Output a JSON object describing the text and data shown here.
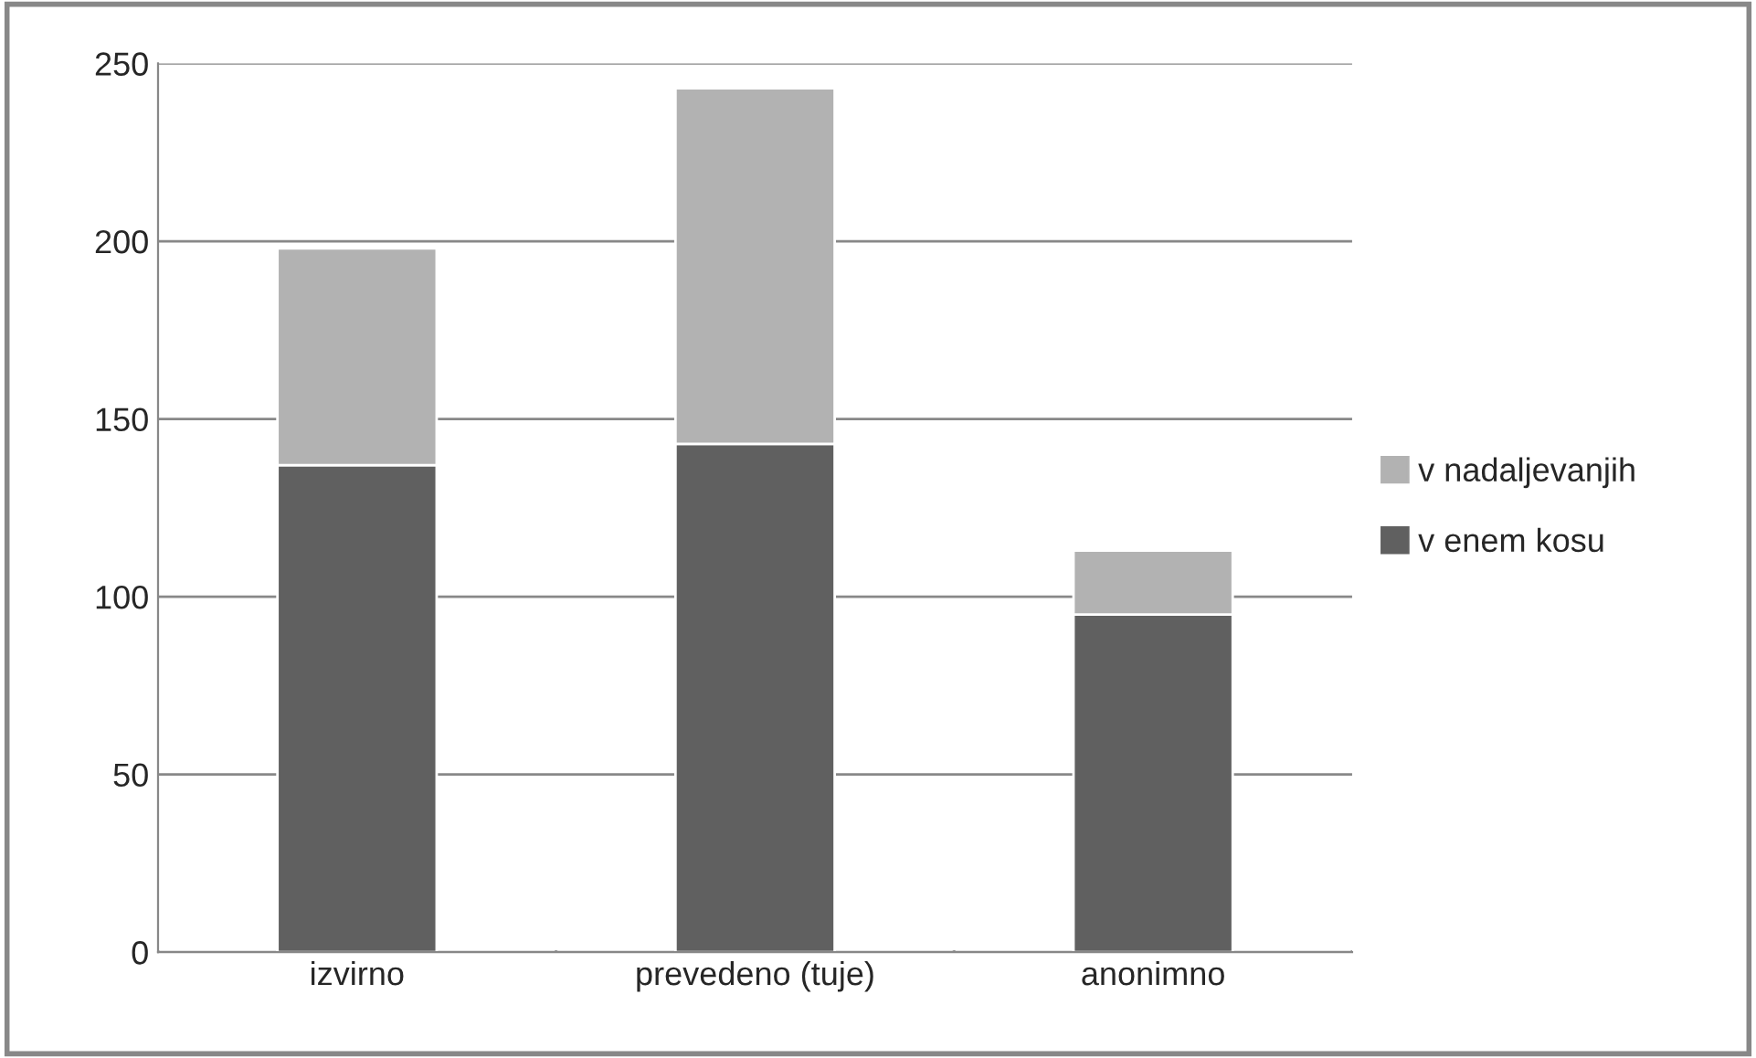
{
  "chart_data": {
    "type": "bar",
    "stacked": true,
    "categories": [
      "izvirno",
      "prevedeno (tuje)",
      "anonimno"
    ],
    "series": [
      {
        "name": "v enem kosu",
        "color": "#606060",
        "values": [
          137,
          143,
          95
        ]
      },
      {
        "name": "v nadaljevanjih",
        "color": "#b2b2b2",
        "values": [
          61,
          100,
          18
        ]
      }
    ],
    "ylim": [
      0,
      250
    ],
    "yticks": [
      0,
      50,
      100,
      150,
      200,
      250
    ],
    "grid": "y",
    "legend": "right"
  }
}
